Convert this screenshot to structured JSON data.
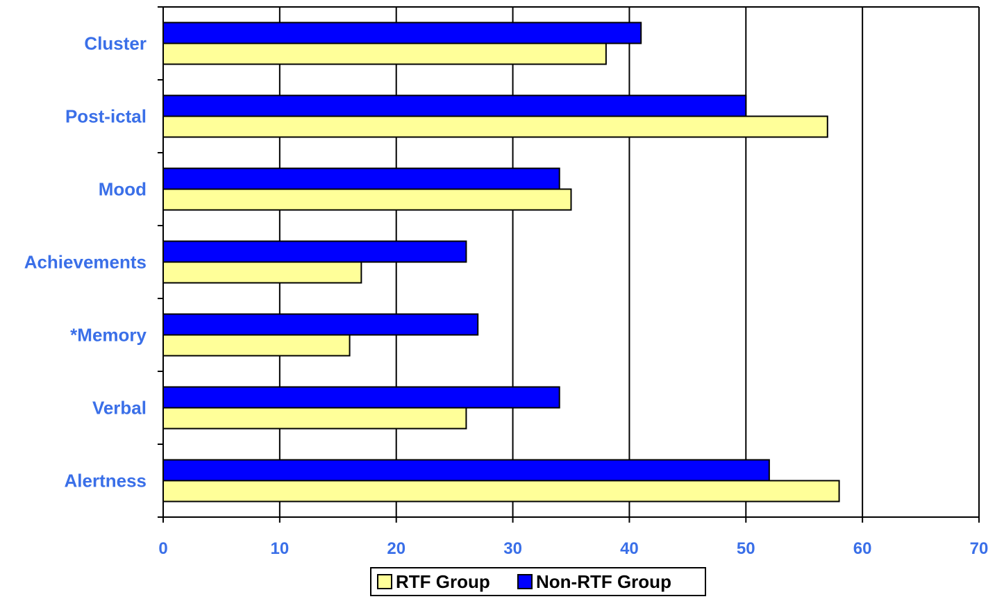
{
  "colors": {
    "label_color": "#3a6fe8",
    "rtf_fill": "#ffff99",
    "non_rtf_fill": "#0000ff",
    "grid": "#000000"
  },
  "chart_data": {
    "type": "bar",
    "orientation": "horizontal",
    "title": "",
    "xlabel": "",
    "ylabel": "",
    "categories": [
      "Alertness",
      "Verbal",
      "*Memory",
      "Achievements",
      "Mood",
      "Post-ictal",
      "Cluster"
    ],
    "series": [
      {
        "name": "RTF Group",
        "color": "#ffff99",
        "values": [
          58,
          26,
          16,
          17,
          35,
          57,
          38
        ]
      },
      {
        "name": "Non-RTF Group",
        "color": "#0000ff",
        "values": [
          52,
          34,
          27,
          26,
          34,
          50,
          41
        ]
      }
    ],
    "xlim": [
      0,
      70
    ],
    "xticks": [
      0,
      10,
      20,
      30,
      40,
      50,
      60,
      70
    ],
    "grid": "vertical",
    "legend": {
      "placement": "bottom",
      "entries": [
        "RTF Group",
        "Non-RTF Group"
      ]
    }
  }
}
